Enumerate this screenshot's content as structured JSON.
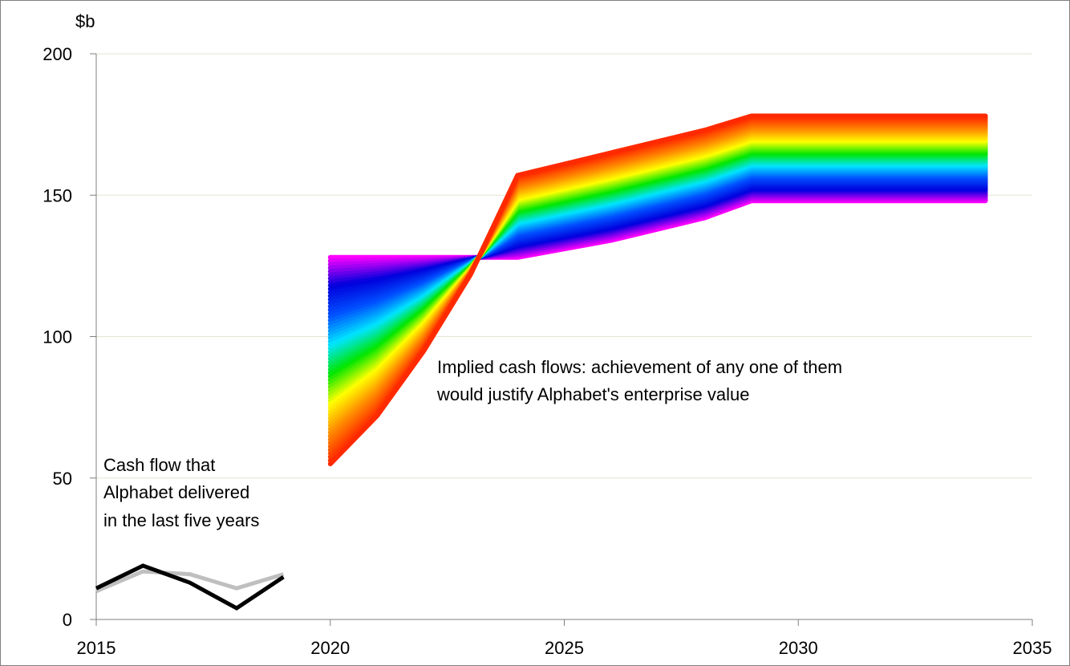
{
  "chart_data": {
    "type": "line",
    "ylabel": "$b",
    "xlim": [
      2015,
      2035
    ],
    "ylim": [
      0,
      200
    ],
    "xticks": [
      2015,
      2020,
      2025,
      2030,
      2035
    ],
    "yticks": [
      0,
      50,
      100,
      150,
      200
    ],
    "grid": "horizontal",
    "legend": "none",
    "historical_series": [
      {
        "color": "#000000",
        "x": [
          2015,
          2016,
          2017,
          2018,
          2019
        ],
        "y": [
          11,
          19,
          13,
          4,
          15
        ]
      },
      {
        "color": "#bfbfbf",
        "x": [
          2015,
          2016,
          2017,
          2018,
          2019
        ],
        "y": [
          10,
          17,
          16,
          11,
          16
        ]
      }
    ],
    "implied_band": {
      "x": [
        2020,
        2021,
        2022,
        2023,
        2024,
        2025,
        2026,
        2027,
        2028,
        2029,
        2030,
        2031,
        2032,
        2033,
        2034
      ],
      "top_path": [
        55,
        72,
        95,
        122,
        157,
        161,
        165,
        169,
        173,
        178,
        178,
        178,
        178,
        178,
        178
      ],
      "bottom_path": [
        128,
        128,
        128,
        128,
        128,
        131,
        134,
        138,
        142,
        148,
        148,
        148,
        148,
        148,
        148
      ],
      "colors": [
        "#ff2a00",
        "#ff8c00",
        "#ffff00",
        "#00e600",
        "#00e5ff",
        "#0050ff",
        "#0000dd",
        "#ff00ff"
      ],
      "n_lines": 60
    },
    "annotations": [
      {
        "id": "historical",
        "lines": [
          "Cash flow that",
          "Alphabet delivered",
          "in the last five years"
        ]
      },
      {
        "id": "implied",
        "lines": [
          "Implied cash flows: achievement of any one of them",
          "would justify Alphabet's enterprise value"
        ]
      }
    ]
  }
}
